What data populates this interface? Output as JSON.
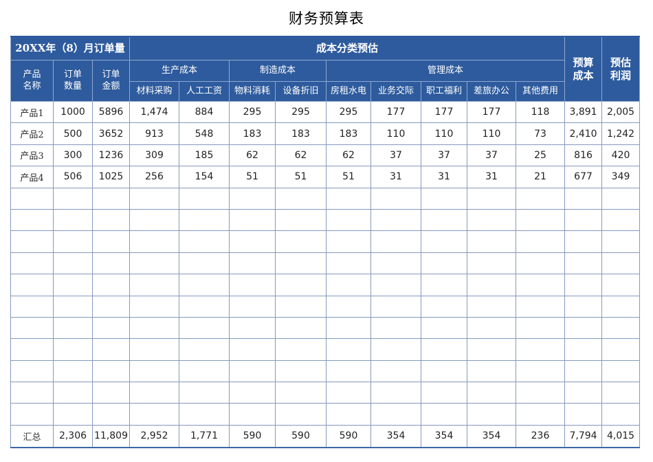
{
  "page": {
    "title": "财务预算表"
  },
  "table": {
    "header": {
      "order_volume_label": "20XX年（8）月订单量",
      "cost_category_label": "成本分类预估",
      "budget_cost_label": "预算\n成本",
      "estimated_profit_label": "预估\n利润",
      "product_name_label": "产品\n名称",
      "order_quantity_label": "订单\n数量",
      "order_amount_label": "订单\n金额",
      "production_cost_label": "生产成本",
      "manufacturing_cost_label": "制造成本",
      "management_cost_label": "管理成本",
      "sub_columns": [
        "材料采购",
        "人工工资",
        "物料消耗",
        "设备折旧",
        "房租水电",
        "业务交际",
        "职工福利",
        "差旅办公",
        "其他费用"
      ]
    },
    "rows": [
      {
        "name": "产品1",
        "cells": [
          "1000",
          "5896",
          "1,474",
          "884",
          "295",
          "295",
          "295",
          "177",
          "177",
          "177",
          "118",
          "3,891",
          "2,005"
        ]
      },
      {
        "name": "产品2",
        "cells": [
          "500",
          "3652",
          "913",
          "548",
          "183",
          "183",
          "183",
          "110",
          "110",
          "110",
          "73",
          "2,410",
          "1,242"
        ]
      },
      {
        "name": "产品3",
        "cells": [
          "300",
          "1236",
          "309",
          "185",
          "62",
          "62",
          "62",
          "37",
          "37",
          "37",
          "25",
          "816",
          "420"
        ]
      },
      {
        "name": "产品4",
        "cells": [
          "506",
          "1025",
          "256",
          "154",
          "51",
          "51",
          "51",
          "31",
          "31",
          "31",
          "21",
          "677",
          "349"
        ]
      }
    ],
    "empty_row_count": 11,
    "summary": {
      "name": "汇总",
      "cells": [
        "2,306",
        "11,809",
        "2,952",
        "1,771",
        "590",
        "590",
        "590",
        "354",
        "354",
        "354",
        "236",
        "7,794",
        "4,015"
      ]
    }
  },
  "colors": {
    "header_bg": "#2e5b9d",
    "header_text": "#ffffff",
    "grid_border": "#8598bf",
    "outer_border": "#3a66a4",
    "data_text": "#1f1f1f"
  }
}
